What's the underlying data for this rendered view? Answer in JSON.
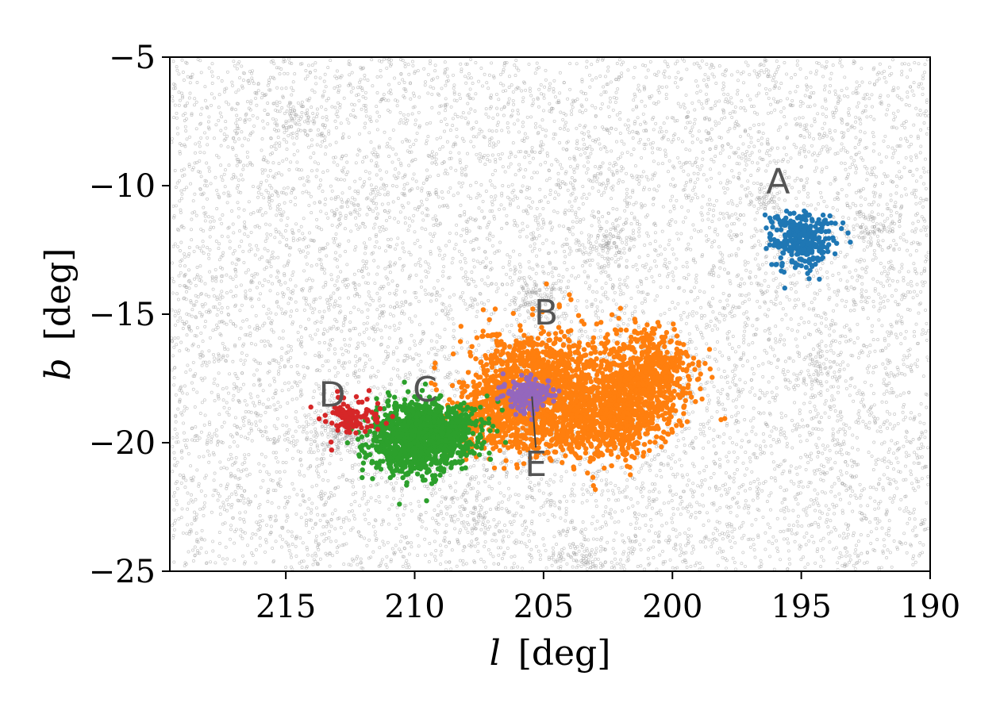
{
  "chart_data": {
    "type": "scatter",
    "title": "",
    "xlabel": {
      "symbol": "l",
      "unit": "[deg]"
    },
    "ylabel": {
      "symbol": "b",
      "unit": "[deg]"
    },
    "xlim": [
      219.5,
      190
    ],
    "ylim": [
      -25,
      -5
    ],
    "x_inverted": true,
    "grid": false,
    "xticks": [
      {
        "value": 215,
        "label": "215"
      },
      {
        "value": 210,
        "label": "210"
      },
      {
        "value": 205,
        "label": "205"
      },
      {
        "value": 200,
        "label": "200"
      },
      {
        "value": 195,
        "label": "195"
      },
      {
        "value": 190,
        "label": "190"
      }
    ],
    "yticks": [
      {
        "value": -5,
        "label": "−5"
      },
      {
        "value": -10,
        "label": "−10"
      },
      {
        "value": -15,
        "label": "−15"
      },
      {
        "value": -20,
        "label": "−20"
      },
      {
        "value": -25,
        "label": "−25"
      }
    ],
    "background": {
      "color": "#9a9a9a",
      "n_points": 9000,
      "dense_spots": [
        {
          "l": 212.5,
          "b": -19.5,
          "sd_l": 0.8,
          "sd_b": 0.5,
          "n": 250
        },
        {
          "l": 205.4,
          "b": -14.3,
          "sd_l": 0.4,
          "sd_b": 0.4,
          "n": 90
        },
        {
          "l": 205.0,
          "b": -18.5,
          "sd_l": 1.0,
          "sd_b": 1.0,
          "n": 150
        },
        {
          "l": 202.5,
          "b": -12.2,
          "sd_l": 0.5,
          "sd_b": 0.5,
          "n": 80
        },
        {
          "l": 192.4,
          "b": -11.6,
          "sd_l": 0.5,
          "sd_b": 0.4,
          "n": 80
        },
        {
          "l": 196.3,
          "b": -10.5,
          "sd_l": 0.3,
          "sd_b": 0.3,
          "n": 50
        },
        {
          "l": 194.3,
          "b": -17.0,
          "sd_l": 0.4,
          "sd_b": 0.4,
          "n": 60
        },
        {
          "l": 214.5,
          "b": -7.5,
          "sd_l": 0.5,
          "sd_b": 0.4,
          "n": 60
        },
        {
          "l": 207.5,
          "b": -22.8,
          "sd_l": 0.6,
          "sd_b": 0.5,
          "n": 70
        },
        {
          "l": 203.5,
          "b": -24.5,
          "sd_l": 0.6,
          "sd_b": 0.3,
          "n": 60
        }
      ]
    },
    "series": [
      {
        "id": "A",
        "color": "#1f77b4",
        "components": [
          {
            "l": 195.0,
            "b": -12.1,
            "sd_l": 0.65,
            "sd_b": 0.55,
            "n": 320
          }
        ]
      },
      {
        "id": "B",
        "color": "#ff7f0e",
        "components": [
          {
            "l": 205.4,
            "b": -17.6,
            "sd_l": 1.2,
            "sd_b": 1.0,
            "n": 900
          },
          {
            "l": 204.3,
            "b": -19.2,
            "sd_l": 1.4,
            "sd_b": 0.8,
            "n": 500
          },
          {
            "l": 201.2,
            "b": -17.5,
            "sd_l": 1.0,
            "sd_b": 1.0,
            "n": 700
          },
          {
            "l": 202.3,
            "b": -19.0,
            "sd_l": 1.0,
            "sd_b": 0.8,
            "n": 450
          },
          {
            "l": 207.3,
            "b": -19.0,
            "sd_l": 0.7,
            "sd_b": 0.7,
            "n": 250
          }
        ]
      },
      {
        "id": "C",
        "color": "#2ca02c",
        "components": [
          {
            "l": 209.6,
            "b": -19.6,
            "sd_l": 1.0,
            "sd_b": 0.6,
            "n": 1100
          },
          {
            "l": 210.3,
            "b": -20.4,
            "sd_l": 0.7,
            "sd_b": 0.5,
            "n": 250
          }
        ]
      },
      {
        "id": "D",
        "color": "#d62728",
        "components": [
          {
            "l": 212.5,
            "b": -19.0,
            "sd_l": 0.55,
            "sd_b": 0.35,
            "n": 110
          }
        ]
      },
      {
        "id": "E",
        "color": "#9467bd",
        "components": [
          {
            "l": 205.6,
            "b": -18.1,
            "sd_l": 0.45,
            "sd_b": 0.35,
            "n": 160
          }
        ]
      }
    ],
    "annotations": [
      {
        "text": "A",
        "l": 195.9,
        "b": -10.3
      },
      {
        "text": "B",
        "l": 204.9,
        "b": -15.4
      },
      {
        "text": "C",
        "l": 209.6,
        "b": -18.4
      },
      {
        "text": "D",
        "l": 213.2,
        "b": -18.6
      },
      {
        "text": "E",
        "l": 205.3,
        "b": -21.3,
        "line_to": {
          "l": 205.45,
          "b": -18.2
        }
      }
    ]
  }
}
